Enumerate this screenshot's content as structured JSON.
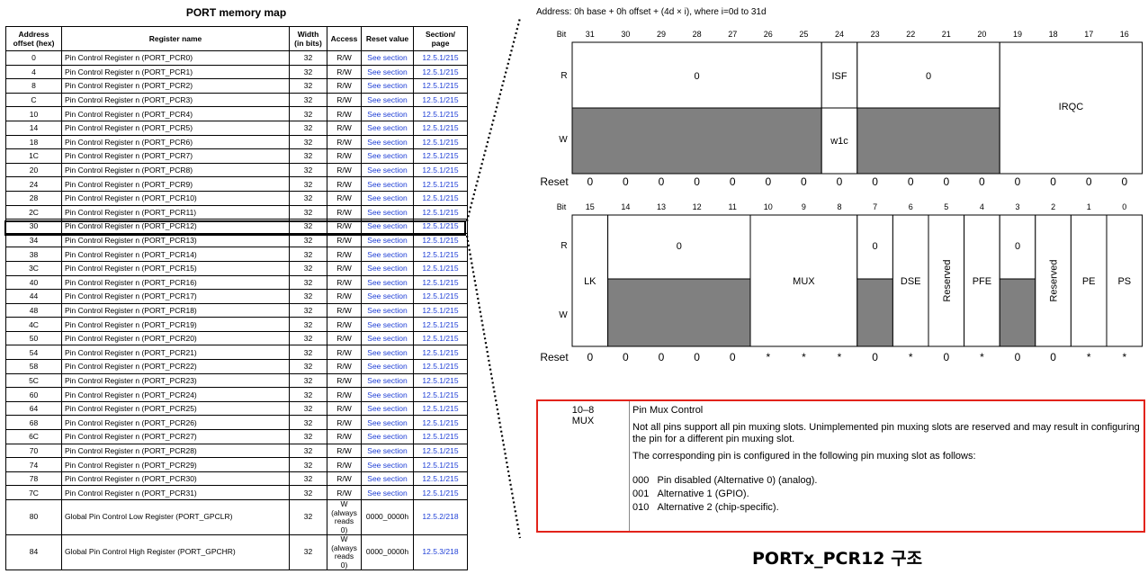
{
  "memory_map": {
    "title": "PORT memory map",
    "headers": [
      "Address offset (hex)",
      "Register name",
      "Width (in bits)",
      "Access",
      "Reset value",
      "Section/ page"
    ],
    "rows": [
      [
        "0",
        "Pin Control Register n (PORT_PCR0)",
        "32",
        "R/W",
        "See section",
        "12.5.1/215"
      ],
      [
        "4",
        "Pin Control Register n (PORT_PCR1)",
        "32",
        "R/W",
        "See section",
        "12.5.1/215"
      ],
      [
        "8",
        "Pin Control Register n (PORT_PCR2)",
        "32",
        "R/W",
        "See section",
        "12.5.1/215"
      ],
      [
        "C",
        "Pin Control Register n (PORT_PCR3)",
        "32",
        "R/W",
        "See section",
        "12.5.1/215"
      ],
      [
        "10",
        "Pin Control Register n (PORT_PCR4)",
        "32",
        "R/W",
        "See section",
        "12.5.1/215"
      ],
      [
        "14",
        "Pin Control Register n (PORT_PCR5)",
        "32",
        "R/W",
        "See section",
        "12.5.1/215"
      ],
      [
        "18",
        "Pin Control Register n (PORT_PCR6)",
        "32",
        "R/W",
        "See section",
        "12.5.1/215"
      ],
      [
        "1C",
        "Pin Control Register n (PORT_PCR7)",
        "32",
        "R/W",
        "See section",
        "12.5.1/215"
      ],
      [
        "20",
        "Pin Control Register n (PORT_PCR8)",
        "32",
        "R/W",
        "See section",
        "12.5.1/215"
      ],
      [
        "24",
        "Pin Control Register n (PORT_PCR9)",
        "32",
        "R/W",
        "See section",
        "12.5.1/215"
      ],
      [
        "28",
        "Pin Control Register n (PORT_PCR10)",
        "32",
        "R/W",
        "See section",
        "12.5.1/215"
      ],
      [
        "2C",
        "Pin Control Register n (PORT_PCR11)",
        "32",
        "R/W",
        "See section",
        "12.5.1/215"
      ],
      [
        "30",
        "Pin Control Register n (PORT_PCR12)",
        "32",
        "R/W",
        "See section",
        "12.5.1/215"
      ],
      [
        "34",
        "Pin Control Register n (PORT_PCR13)",
        "32",
        "R/W",
        "See section",
        "12.5.1/215"
      ],
      [
        "38",
        "Pin Control Register n (PORT_PCR14)",
        "32",
        "R/W",
        "See section",
        "12.5.1/215"
      ],
      [
        "3C",
        "Pin Control Register n (PORT_PCR15)",
        "32",
        "R/W",
        "See section",
        "12.5.1/215"
      ],
      [
        "40",
        "Pin Control Register n (PORT_PCR16)",
        "32",
        "R/W",
        "See section",
        "12.5.1/215"
      ],
      [
        "44",
        "Pin Control Register n (PORT_PCR17)",
        "32",
        "R/W",
        "See section",
        "12.5.1/215"
      ],
      [
        "48",
        "Pin Control Register n (PORT_PCR18)",
        "32",
        "R/W",
        "See section",
        "12.5.1/215"
      ],
      [
        "4C",
        "Pin Control Register n (PORT_PCR19)",
        "32",
        "R/W",
        "See section",
        "12.5.1/215"
      ],
      [
        "50",
        "Pin Control Register n (PORT_PCR20)",
        "32",
        "R/W",
        "See section",
        "12.5.1/215"
      ],
      [
        "54",
        "Pin Control Register n (PORT_PCR21)",
        "32",
        "R/W",
        "See section",
        "12.5.1/215"
      ],
      [
        "58",
        "Pin Control Register n (PORT_PCR22)",
        "32",
        "R/W",
        "See section",
        "12.5.1/215"
      ],
      [
        "5C",
        "Pin Control Register n (PORT_PCR23)",
        "32",
        "R/W",
        "See section",
        "12.5.1/215"
      ],
      [
        "60",
        "Pin Control Register n (PORT_PCR24)",
        "32",
        "R/W",
        "See section",
        "12.5.1/215"
      ],
      [
        "64",
        "Pin Control Register n (PORT_PCR25)",
        "32",
        "R/W",
        "See section",
        "12.5.1/215"
      ],
      [
        "68",
        "Pin Control Register n (PORT_PCR26)",
        "32",
        "R/W",
        "See section",
        "12.5.1/215"
      ],
      [
        "6C",
        "Pin Control Register n (PORT_PCR27)",
        "32",
        "R/W",
        "See section",
        "12.5.1/215"
      ],
      [
        "70",
        "Pin Control Register n (PORT_PCR28)",
        "32",
        "R/W",
        "See section",
        "12.5.1/215"
      ],
      [
        "74",
        "Pin Control Register n (PORT_PCR29)",
        "32",
        "R/W",
        "See section",
        "12.5.1/215"
      ],
      [
        "78",
        "Pin Control Register n (PORT_PCR30)",
        "32",
        "R/W",
        "See section",
        "12.5.1/215"
      ],
      [
        "7C",
        "Pin Control Register n (PORT_PCR31)",
        "32",
        "R/W",
        "See section",
        "12.5.1/215"
      ]
    ],
    "global_rows": [
      [
        "80",
        "Global Pin Control Low Register (PORT_GPCLR)",
        "32",
        "W (always reads 0)",
        "0000_0000h",
        "12.5.2/218"
      ],
      [
        "84",
        "Global Pin Control High Register (PORT_GPCHR)",
        "32",
        "W (always reads 0)",
        "0000_0000h",
        "12.5.3/218"
      ]
    ],
    "highlighted_offset": "30"
  },
  "register": {
    "address_line": "Address: 0h base + 0h offset + (4d × i), where i=0d to 31d",
    "row_labels": {
      "bit": "Bit",
      "r": "R",
      "w": "W",
      "reset": "Reset"
    },
    "upper": {
      "bits": [
        "31",
        "30",
        "29",
        "28",
        "27",
        "26",
        "25",
        "24",
        "23",
        "22",
        "21",
        "20",
        "19",
        "18",
        "17",
        "16"
      ],
      "reset": [
        "0",
        "0",
        "0",
        "0",
        "0",
        "0",
        "0",
        "0",
        "0",
        "0",
        "0",
        "0",
        "0",
        "0",
        "0",
        "0"
      ],
      "fields": {
        "r_zero_a": "0",
        "isf": "ISF",
        "w1c": "w1c",
        "r_zero_b": "0",
        "irqc": "IRQC"
      }
    },
    "lower": {
      "bits": [
        "15",
        "14",
        "13",
        "12",
        "11",
        "10",
        "9",
        "8",
        "7",
        "6",
        "5",
        "4",
        "3",
        "2",
        "1",
        "0"
      ],
      "reset": [
        "0",
        "0",
        "0",
        "0",
        "0",
        "*",
        "*",
        "*",
        "0",
        "*",
        "0",
        "*",
        "0",
        "0",
        "*",
        "*"
      ],
      "fields": {
        "lk": "LK",
        "r_zero_a": "0",
        "mux": "MUX",
        "r_zero_b": "0",
        "dse": "DSE",
        "reserved_a": "Reserved",
        "pfe": "PFE",
        "r_zero_c": "0",
        "reserved_b": "Reserved",
        "pe": "PE",
        "ps": "PS"
      }
    },
    "shade_color": "#808080"
  },
  "field_desc": {
    "bits": "10–8",
    "name": "MUX",
    "title": "Pin Mux Control",
    "para1": "Not all pins support all pin muxing slots. Unimplemented pin muxing slots are reserved and may result in configuring the pin for a different pin muxing slot.",
    "para2": "The corresponding pin is configured in the following pin muxing slot as follows:",
    "options": [
      {
        "code": "000",
        "text": "Pin disabled (Alternative 0) (analog)."
      },
      {
        "code": "001",
        "text": "Alternative 1 (GPIO)."
      },
      {
        "code": "010",
        "text": "Alternative 2 (chip-specific)."
      }
    ],
    "border_color": "#e2231a"
  },
  "caption": "PORTx_PCR12 구조"
}
